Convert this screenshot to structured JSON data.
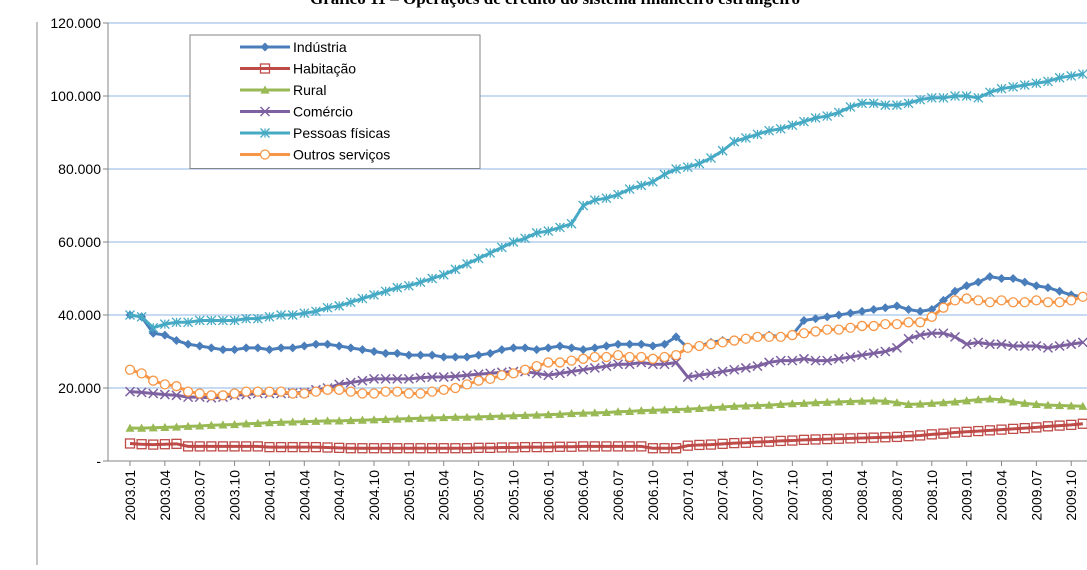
{
  "chart_data": {
    "type": "line",
    "title": "Gráfico 11 – Operações de crédito do sistema financeiro estrangeiro",
    "categories": [
      "2003.01",
      null,
      null,
      "2003.04",
      null,
      null,
      "2003.07",
      null,
      null,
      "2003.10",
      null,
      null,
      "2004.01",
      null,
      null,
      "2004.04",
      null,
      null,
      "2004.07",
      null,
      null,
      "2004.10",
      null,
      null,
      "2005.01",
      null,
      null,
      "2005.04",
      null,
      null,
      "2005.07",
      null,
      null,
      "2005.10",
      null,
      null,
      "2006.01",
      null,
      null,
      "2006.04",
      null,
      null,
      "2006.07",
      null,
      null,
      "2006.10",
      null,
      null,
      "2007.01",
      null,
      null,
      "2007.04",
      null,
      null,
      "2007.07",
      null,
      null,
      "2007.10",
      null,
      null,
      "2008.01",
      null,
      null,
      "2008.04",
      null,
      null,
      "2008.07",
      null,
      null,
      "2008.10",
      null,
      null,
      "2009.01",
      null,
      null,
      "2009.04",
      null,
      null,
      "2009.07",
      null,
      null,
      "2009.10",
      null
    ],
    "ylim": [
      0,
      120000
    ],
    "yticks": [
      {
        "value": 0,
        "label": "-"
      },
      {
        "value": 20000,
        "label": "20.000"
      },
      {
        "value": 40000,
        "label": "40.000"
      },
      {
        "value": 60000,
        "label": "60.000"
      },
      {
        "value": 80000,
        "label": "80.000"
      },
      {
        "value": 100000,
        "label": "100.000"
      },
      {
        "value": 120000,
        "label": "120.000"
      }
    ],
    "grid": true,
    "legend": "top-left",
    "series": [
      {
        "name": "Indústria",
        "color": "#4a7ebb",
        "marker": "diamond",
        "values": [
          40000,
          39500,
          35000,
          34500,
          33000,
          32000,
          31500,
          31000,
          30500,
          30500,
          31000,
          31000,
          30500,
          31000,
          31000,
          31500,
          32000,
          32000,
          31500,
          31000,
          30500,
          30000,
          29500,
          29500,
          29000,
          29000,
          29000,
          28500,
          28500,
          28500,
          29000,
          29500,
          30500,
          31000,
          31000,
          30500,
          31000,
          31500,
          31000,
          30500,
          31000,
          31500,
          32000,
          32000,
          32000,
          31500,
          32000,
          34000,
          31000,
          31500,
          32500,
          33000,
          33000,
          33500,
          34000,
          34500,
          34000,
          34500,
          38500,
          39000,
          39500,
          40000,
          40500,
          41000,
          41500,
          42000,
          42500,
          41500,
          41000,
          41500,
          44000,
          46500,
          48000,
          49000,
          50500,
          50000,
          50000,
          49000,
          48000,
          47500,
          46500,
          45500,
          45000
        ]
      },
      {
        "name": "Habitação",
        "color": "#be4b48",
        "marker": "square",
        "values": [
          4800,
          4600,
          4500,
          4600,
          4700,
          4000,
          4000,
          4000,
          4000,
          4000,
          4000,
          4000,
          3800,
          3800,
          3800,
          3800,
          3800,
          3700,
          3600,
          3500,
          3500,
          3500,
          3500,
          3500,
          3500,
          3500,
          3500,
          3500,
          3500,
          3500,
          3600,
          3600,
          3700,
          3700,
          3800,
          3800,
          3800,
          3900,
          3900,
          4000,
          4000,
          4000,
          4000,
          4000,
          4000,
          3500,
          3500,
          3500,
          4200,
          4400,
          4500,
          4700,
          4900,
          5000,
          5200,
          5300,
          5500,
          5600,
          5800,
          5900,
          6000,
          6100,
          6200,
          6300,
          6400,
          6500,
          6600,
          6800,
          7000,
          7300,
          7500,
          7800,
          8000,
          8200,
          8400,
          8600,
          8800,
          9000,
          9200,
          9500,
          9700,
          9900,
          10200
        ]
      },
      {
        "name": "Rural",
        "color": "#98b954",
        "marker": "triangle",
        "values": [
          9000,
          9000,
          9100,
          9200,
          9300,
          9500,
          9600,
          9800,
          9900,
          10000,
          10200,
          10300,
          10500,
          10600,
          10700,
          10800,
          10900,
          11000,
          11000,
          11100,
          11200,
          11300,
          11400,
          11500,
          11600,
          11700,
          11800,
          11900,
          12000,
          12000,
          12100,
          12200,
          12300,
          12400,
          12500,
          12600,
          12700,
          12800,
          13000,
          13100,
          13200,
          13300,
          13500,
          13600,
          13800,
          13900,
          14000,
          14100,
          14200,
          14400,
          14600,
          14800,
          15000,
          15100,
          15200,
          15300,
          15500,
          15700,
          15800,
          16000,
          16100,
          16200,
          16300,
          16400,
          16500,
          16400,
          16000,
          15500,
          15600,
          15800,
          16000,
          16200,
          16500,
          16800,
          17000,
          16800,
          16200,
          15800,
          15500,
          15300,
          15200,
          15100,
          15000
        ]
      },
      {
        "name": "Comércio",
        "color": "#7d60a0",
        "marker": "x",
        "values": [
          19000,
          18800,
          18500,
          18200,
          18000,
          17500,
          17500,
          17300,
          17500,
          18000,
          18200,
          18500,
          18500,
          18500,
          18600,
          18800,
          19500,
          20000,
          21000,
          21500,
          22000,
          22500,
          22500,
          22500,
          22500,
          22800,
          23000,
          23000,
          23200,
          23500,
          23800,
          24000,
          24300,
          24500,
          24500,
          24000,
          23500,
          24000,
          24500,
          25000,
          25500,
          26000,
          26500,
          26500,
          27000,
          26500,
          26500,
          27000,
          23000,
          23500,
          24000,
          24500,
          25000,
          25500,
          26000,
          27000,
          27500,
          27500,
          28000,
          27500,
          27500,
          28000,
          28500,
          29000,
          29500,
          30000,
          31000,
          33500,
          34500,
          35000,
          35000,
          34000,
          32000,
          32500,
          32000,
          32000,
          31500,
          31500,
          31500,
          31000,
          31500,
          32000,
          32500
        ]
      },
      {
        "name": "Pessoas físicas",
        "color": "#46aac5",
        "marker": "star",
        "values": [
          40000,
          39500,
          36500,
          37500,
          38000,
          38000,
          38500,
          38500,
          38500,
          38500,
          39000,
          39000,
          39500,
          40000,
          40000,
          40500,
          41000,
          42000,
          42500,
          43500,
          44500,
          45500,
          46500,
          47500,
          48000,
          49000,
          50000,
          51000,
          52500,
          54000,
          55500,
          57000,
          58500,
          60000,
          61000,
          62500,
          63000,
          64000,
          65000,
          70000,
          71500,
          72000,
          73000,
          74500,
          75500,
          76500,
          78500,
          80000,
          80500,
          81500,
          83000,
          85000,
          87500,
          88500,
          89500,
          90500,
          91000,
          92000,
          93000,
          94000,
          94500,
          95500,
          97000,
          98000,
          98000,
          97500,
          97500,
          98000,
          99000,
          99500,
          99500,
          100000,
          100000,
          99500,
          101000,
          102000,
          102500,
          103000,
          103500,
          104000,
          105000,
          105500,
          106000
        ]
      },
      {
        "name": "Outros serviços",
        "color": "#f79646",
        "marker": "circle",
        "values": [
          25000,
          24000,
          22000,
          21000,
          20500,
          19000,
          18500,
          18000,
          18000,
          18500,
          19000,
          19000,
          19000,
          19000,
          18500,
          18500,
          19000,
          19500,
          19500,
          19000,
          18500,
          18500,
          19000,
          19000,
          18500,
          18500,
          19000,
          19500,
          20000,
          21000,
          22000,
          22500,
          23500,
          24000,
          25000,
          26000,
          27000,
          27000,
          27500,
          28000,
          28500,
          28500,
          29000,
          28500,
          28500,
          28000,
          28500,
          29000,
          31000,
          31500,
          32000,
          32500,
          33000,
          33500,
          34000,
          34000,
          34000,
          34500,
          35000,
          35500,
          36000,
          36000,
          36500,
          37000,
          37000,
          37500,
          37500,
          38000,
          38000,
          39500,
          42000,
          44000,
          44500,
          44000,
          43500,
          44000,
          43500,
          43500,
          44000,
          43500,
          43500,
          44000,
          45000
        ]
      }
    ]
  }
}
